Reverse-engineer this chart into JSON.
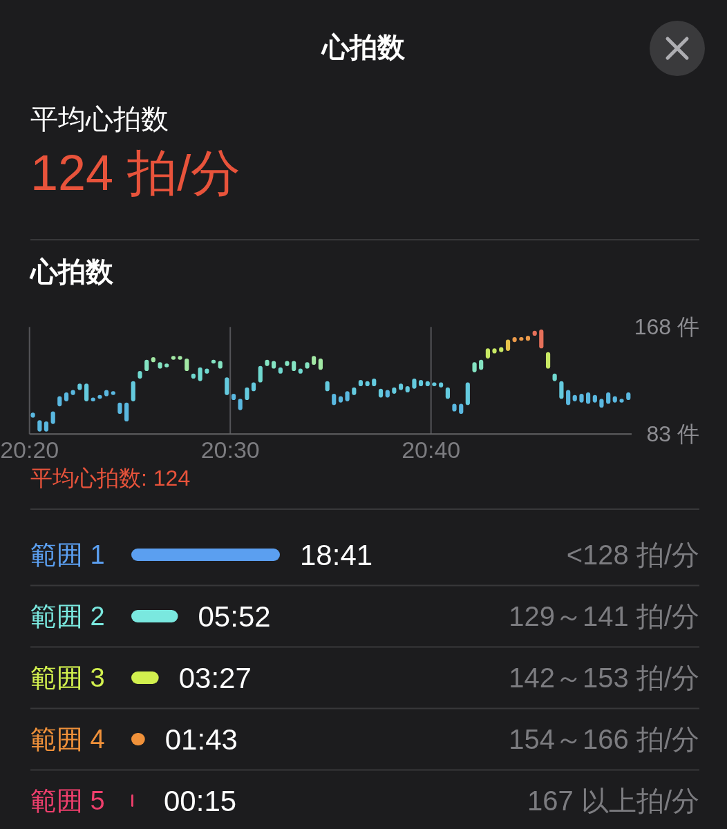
{
  "chart_data": [
    {
      "type": "other",
      "title": "心拍数",
      "annotations": [
        "平均心拍数",
        "124 拍/分"
      ]
    },
    {
      "type": "bar",
      "title": "心拍数",
      "x": [
        20.3361,
        20.3417,
        20.3472,
        20.3528,
        20.3583,
        20.3639,
        20.3694,
        20.375,
        20.3806,
        20.3861,
        20.3917,
        20.3972,
        20.4028,
        20.4083,
        20.4139,
        20.4194,
        20.425,
        20.4306,
        20.4361,
        20.4417,
        20.4472,
        20.4528,
        20.4583,
        20.4639,
        20.4694,
        20.475,
        20.4806,
        20.4861,
        20.4917,
        20.4972,
        20.5028,
        20.5083,
        20.5139,
        20.5194,
        20.525,
        20.5306,
        20.5361,
        20.5417,
        20.5472,
        20.5528,
        20.5583,
        20.5639,
        20.5694,
        20.575,
        20.5806,
        20.5861,
        20.5917,
        20.5972,
        20.6028,
        20.6083,
        20.6139,
        20.6194,
        20.625,
        20.6306,
        20.6361,
        20.6417,
        20.6472,
        20.6528,
        20.6583,
        20.6639,
        20.6694,
        20.675,
        20.6806,
        20.6861,
        20.6917,
        20.6972,
        20.7028,
        20.7083,
        20.7139,
        20.7194,
        20.725,
        20.7306,
        20.7361,
        20.7417,
        20.7472,
        20.7528,
        20.7583,
        20.7639,
        20.7694,
        20.775,
        20.7806,
        20.7861,
        20.7917,
        20.7972,
        20.8028,
        20.8083,
        20.8139,
        20.8194,
        20.825,
        20.8306
      ],
      "base": [
        96,
        85,
        85,
        91,
        105,
        109,
        114,
        118,
        109,
        109,
        111,
        113,
        114,
        99,
        93,
        109,
        127,
        133,
        140,
        135,
        136,
        142,
        142,
        133,
        127,
        125,
        131,
        139,
        135,
        114,
        110,
        102,
        110,
        117,
        124,
        137,
        135,
        131,
        137,
        133,
        131,
        135,
        138,
        134,
        117,
        106,
        108,
        109,
        114,
        121,
        121,
        121,
        112,
        112,
        115,
        118,
        116,
        119,
        121,
        121,
        121,
        120,
        111,
        101,
        99,
        106,
        132,
        134,
        143,
        147,
        148,
        149,
        156,
        157,
        157,
        161,
        151,
        135,
        125,
        111,
        106,
        109,
        108,
        107,
        108,
        104,
        107,
        108,
        108,
        110
      ],
      "values": [
        4,
        9,
        8,
        10,
        8,
        7,
        4,
        5,
        14,
        3,
        3,
        5,
        3,
        9,
        15,
        16,
        6,
        9,
        4,
        5,
        3,
        3,
        3,
        10,
        4,
        11,
        4,
        3,
        6,
        14,
        5,
        9,
        10,
        7,
        13,
        5,
        6,
        5,
        4,
        8,
        4,
        5,
        7,
        9,
        8,
        9,
        5,
        8,
        6,
        5,
        4,
        6,
        7,
        6,
        5,
        5,
        5,
        8,
        5,
        4,
        3,
        4,
        9,
        6,
        8,
        18,
        8,
        8,
        8,
        4,
        4,
        9,
        4,
        3,
        4,
        4,
        15,
        13,
        6,
        14,
        12,
        5,
        7,
        9,
        6,
        7,
        9,
        5,
        3,
        6
      ],
      "colors": [
        "#5ab8e0",
        "#5ab8e0",
        "#5ab8e0",
        "#5ab8e0",
        "#5ab8e0",
        "#5ab8e0",
        "#5ab8e0",
        "#64cade",
        "#64cade",
        "#5ab8e0",
        "#5ab8e0",
        "#5ab8e0",
        "#5ab8e0",
        "#5ab8e0",
        "#5ab8e0",
        "#64cade",
        "#70d9d0",
        "#84e3c2",
        "#a2e8a4",
        "#84e3c2",
        "#84e3c2",
        "#a2e8a4",
        "#a2e8a4",
        "#a2e8a4",
        "#70d9d0",
        "#70d9d0",
        "#70d9d0",
        "#84e3c2",
        "#84e3c2",
        "#64cade",
        "#5ab8e0",
        "#5ab8e0",
        "#64cade",
        "#64cade",
        "#70d9d0",
        "#84e3c2",
        "#84e3c2",
        "#70d9d0",
        "#84e3c2",
        "#84e3c2",
        "#70d9d0",
        "#84e3c2",
        "#a2e8a4",
        "#a2e8a4",
        "#64cade",
        "#5ab8e0",
        "#5ab8e0",
        "#5ab8e0",
        "#64cade",
        "#64cade",
        "#64cade",
        "#64cade",
        "#64cade",
        "#5ab8e0",
        "#64cade",
        "#64cade",
        "#64cade",
        "#64cade",
        "#64cade",
        "#64cade",
        "#64cade",
        "#64cade",
        "#64cade",
        "#5ab8e0",
        "#5ab8e0",
        "#64cade",
        "#84e3c2",
        "#84e3c2",
        "#c8e864",
        "#c8e864",
        "#c8e864",
        "#e6c24a",
        "#eb9a4a",
        "#eb9a4a",
        "#eb9a4a",
        "#e6705a",
        "#e6705a",
        "#c8e864",
        "#70d9d0",
        "#64cade",
        "#5ab8e0",
        "#5ab8e0",
        "#5ab8e0",
        "#5ab8e0",
        "#5ab8e0",
        "#5ab8e0",
        "#5ab8e0",
        "#5ab8e0",
        "#5ab8e0",
        "#5ab8e0"
      ],
      "xlim": [
        20.3333,
        20.8333
      ],
      "xticks": [
        {
          "value": 20.3333,
          "label": "20:20"
        },
        {
          "value": 20.5,
          "label": "20:30"
        },
        {
          "value": 20.6667,
          "label": "20:40"
        }
      ],
      "ylim": [
        83,
        168
      ],
      "yticks": [
        {
          "value": 83,
          "label": "83 件"
        },
        {
          "value": 168,
          "label": "168 件"
        }
      ],
      "grid": "x",
      "annotations": [
        "平均心拍数: 124"
      ]
    },
    {
      "type": "bar",
      "orientation": "horizontal",
      "categories": [
        "範囲 1",
        "範囲 2",
        "範囲 3",
        "範囲 4",
        "範囲 5"
      ],
      "values": [
        1121,
        352,
        207,
        103,
        15
      ],
      "colors": [
        "#5b9ff0",
        "#7ae8df",
        "#d2f04e",
        "#f0913a",
        "#ee3f6c"
      ],
      "value_labels": [
        "18:41",
        "05:52",
        "03:27",
        "01:43",
        "00:15"
      ],
      "annotations": [
        "<128 拍/分",
        "129～141 拍/分",
        "142～153 拍/分",
        "154～166 拍/分",
        "167 以上拍/分"
      ]
    }
  ]
}
